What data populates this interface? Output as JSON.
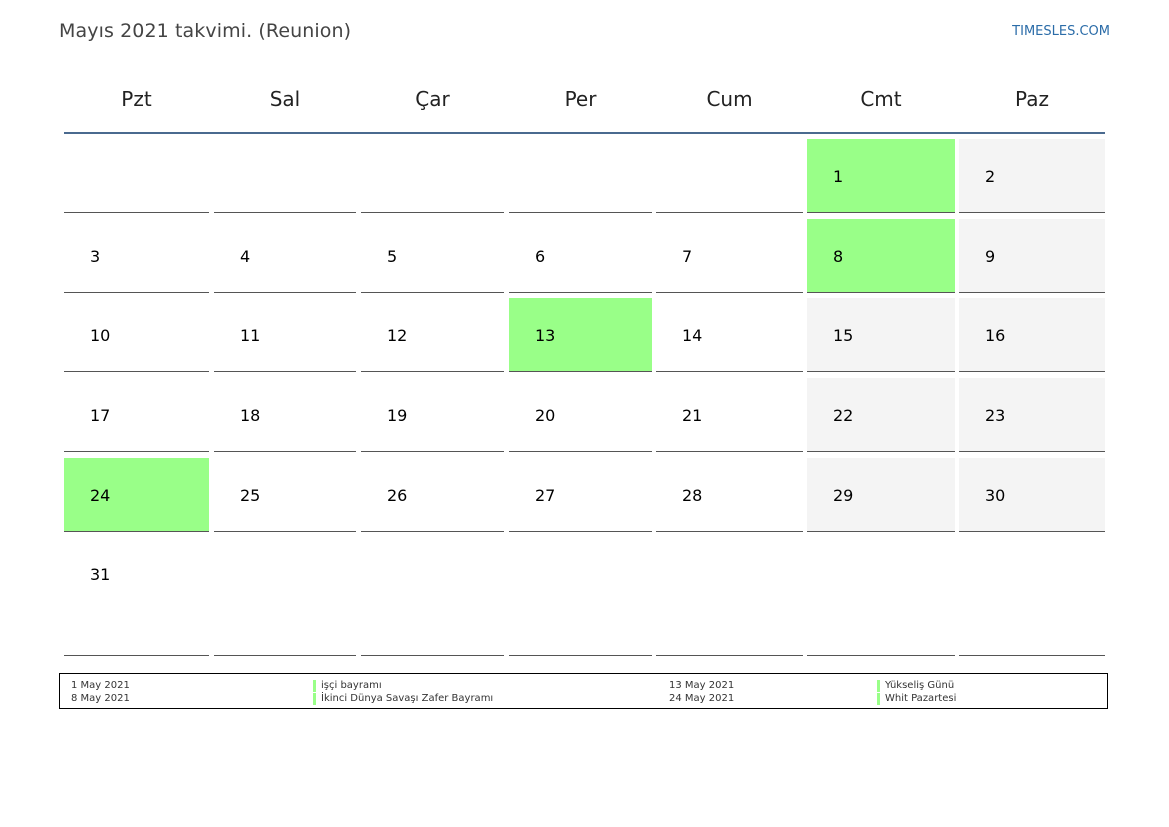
{
  "title": "Mayıs 2021 takvimi. (Reunion)",
  "site": "TIMESLES.COM",
  "colors": {
    "holiday": "#99ff88",
    "weekend": "#f4f4f4",
    "header_rule": "#4a6a8f"
  },
  "weekdays": [
    "Pzt",
    "Sal",
    "Çar",
    "Per",
    "Cum",
    "Cmt",
    "Paz"
  ],
  "weeks": [
    [
      null,
      null,
      null,
      null,
      null,
      {
        "day": "1",
        "holiday": true
      },
      {
        "day": "2"
      }
    ],
    [
      {
        "day": "3"
      },
      {
        "day": "4"
      },
      {
        "day": "5"
      },
      {
        "day": "6"
      },
      {
        "day": "7"
      },
      {
        "day": "8",
        "holiday": true
      },
      {
        "day": "9"
      }
    ],
    [
      {
        "day": "10"
      },
      {
        "day": "11"
      },
      {
        "day": "12"
      },
      {
        "day": "13",
        "holiday": true
      },
      {
        "day": "14"
      },
      {
        "day": "15"
      },
      {
        "day": "16"
      }
    ],
    [
      {
        "day": "17"
      },
      {
        "day": "18"
      },
      {
        "day": "19"
      },
      {
        "day": "20"
      },
      {
        "day": "21"
      },
      {
        "day": "22"
      },
      {
        "day": "23"
      }
    ],
    [
      {
        "day": "24",
        "holiday": true
      },
      {
        "day": "25"
      },
      {
        "day": "26"
      },
      {
        "day": "27"
      },
      {
        "day": "28"
      },
      {
        "day": "29"
      },
      {
        "day": "30"
      }
    ],
    [
      {
        "day": "31"
      },
      null,
      null,
      null,
      null,
      null,
      null
    ]
  ],
  "holidays": [
    {
      "date": "1 May 2021",
      "name": "işçi bayramı"
    },
    {
      "date": "8 May 2021",
      "name": "İkinci Dünya Savaşı Zafer Bayramı"
    },
    {
      "date": "13 May 2021",
      "name": "Yükseliş Günü"
    },
    {
      "date": "24 May 2021",
      "name": "Whit Pazartesi"
    }
  ]
}
